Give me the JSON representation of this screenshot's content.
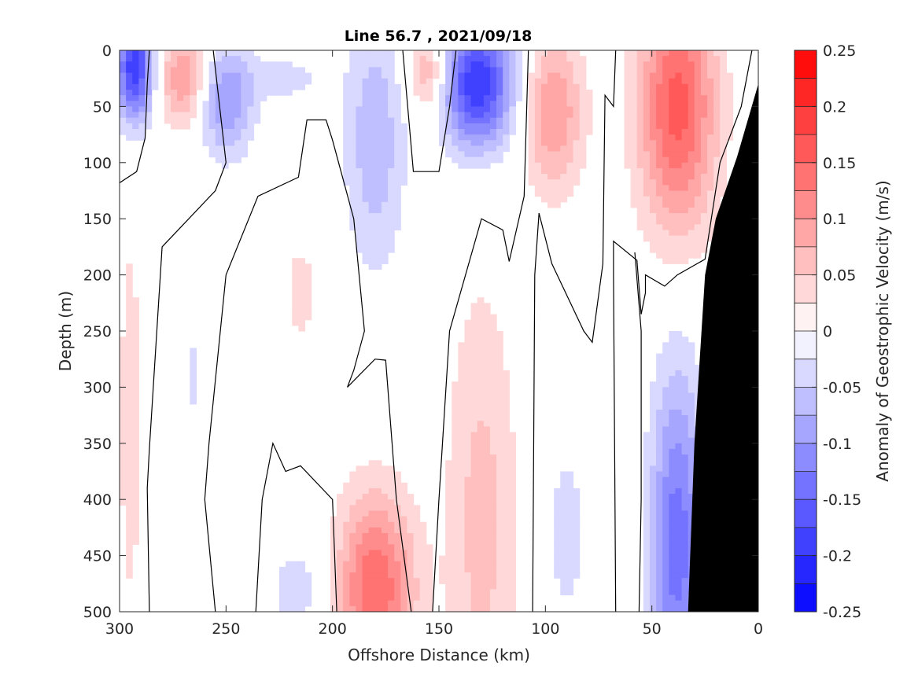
{
  "chart_data": {
    "type": "contour",
    "title": "Line 56.7 , 2021/09/18",
    "xlabel": "Offshore Distance (km)",
    "ylabel": "Depth (m)",
    "colorbar_label": "Anomaly of Geostrophic Velocity (m/s)",
    "xlim": [
      300,
      0
    ],
    "ylim": [
      0,
      500
    ],
    "x_reversed": true,
    "y_reversed": true,
    "x_ticks": [
      300,
      250,
      200,
      150,
      100,
      50,
      0
    ],
    "y_ticks": [
      0,
      50,
      100,
      150,
      200,
      250,
      300,
      350,
      400,
      450,
      500
    ],
    "colorbar_range": [
      -0.25,
      0.25
    ],
    "colorbar_levels": 20,
    "colorbar_ticks": [
      0.25,
      0.2,
      0.15,
      0.1,
      0.05,
      0,
      -0.05,
      -0.1,
      -0.15,
      -0.2,
      -0.25
    ],
    "colorbar_tick_labels": [
      "0.25",
      "0.2",
      "0.15",
      "0.1",
      "0.05",
      "0",
      "-0.05",
      "-0.1",
      "-0.15",
      "-0.2",
      "-0.25"
    ],
    "colors": {
      "positive": "#ff0000",
      "negative": "#0000ff",
      "zero": "#ffffff",
      "bathymetry": "#000000",
      "contour": "#000000"
    },
    "features": [
      {
        "x": 293,
        "depth": 15,
        "value": -0.2,
        "sx": 6,
        "sy": 35
      },
      {
        "x": 270,
        "depth": 25,
        "value": 0.1,
        "sx": 8,
        "sy": 30
      },
      {
        "x": 250,
        "depth": 45,
        "value": -0.1,
        "sx": 9,
        "sy": 35
      },
      {
        "x": 222,
        "depth": 25,
        "value": -0.035,
        "sx": 14,
        "sy": 16
      },
      {
        "x": 180,
        "depth": 80,
        "value": -0.07,
        "sx": 10,
        "sy": 80
      },
      {
        "x": 155,
        "depth": 20,
        "value": 0.09,
        "sx": 7,
        "sy": 26
      },
      {
        "x": 132,
        "depth": 30,
        "value": -0.2,
        "sx": 12,
        "sy": 40
      },
      {
        "x": 96,
        "depth": 55,
        "value": 0.1,
        "sx": 10,
        "sy": 50
      },
      {
        "x": 38,
        "depth": 50,
        "value": 0.16,
        "sx": 13,
        "sy": 80
      },
      {
        "x": 295,
        "depth": 330,
        "value": 0.035,
        "sx": 5,
        "sy": 170
      },
      {
        "x": 265,
        "depth": 290,
        "value": -0.035,
        "sx": 3,
        "sy": 30
      },
      {
        "x": 215,
        "depth": 215,
        "value": 0.035,
        "sx": 6,
        "sy": 40
      },
      {
        "x": 130,
        "depth": 420,
        "value": 0.06,
        "sx": 12,
        "sy": 150
      },
      {
        "x": 180,
        "depth": 480,
        "value": 0.15,
        "sx": 13,
        "sy": 60
      },
      {
        "x": 90,
        "depth": 430,
        "value": -0.035,
        "sx": 8,
        "sy": 70
      },
      {
        "x": 38,
        "depth": 440,
        "value": -0.14,
        "sx": 9,
        "sy": 110
      },
      {
        "x": 215,
        "depth": 480,
        "value": -0.04,
        "sx": 12,
        "sy": 30
      }
    ],
    "bathymetry_profile": [
      {
        "x": 0,
        "depth": 30
      },
      {
        "x": 10,
        "depth": 95
      },
      {
        "x": 20,
        "depth": 150
      },
      {
        "x": 25,
        "depth": 200
      },
      {
        "x": 30,
        "depth": 350
      },
      {
        "x": 33,
        "depth": 500
      }
    ],
    "zero_contours": [
      [
        [
          300,
          118
        ],
        [
          292,
          108
        ],
        [
          288,
          78
        ],
        [
          287,
          30
        ],
        [
          286,
          0
        ]
      ],
      [
        [
          286,
          500
        ],
        [
          287,
          390
        ],
        [
          286,
          355
        ],
        [
          280,
          175
        ],
        [
          255,
          125
        ],
        [
          250,
          100
        ],
        [
          256,
          0
        ]
      ],
      [
        [
          255,
          500
        ],
        [
          260,
          400
        ],
        [
          258,
          350
        ],
        [
          250,
          200
        ],
        [
          235,
          130
        ],
        [
          216,
          113
        ],
        [
          212,
          62
        ],
        [
          203,
          62
        ],
        [
          200,
          80
        ],
        [
          190,
          150
        ],
        [
          185,
          250
        ],
        [
          190,
          285
        ],
        [
          193,
          300
        ],
        [
          180,
          275
        ],
        [
          175,
          276
        ],
        [
          170,
          400
        ],
        [
          163,
          500
        ]
      ],
      [
        [
          236,
          500
        ],
        [
          233,
          400
        ],
        [
          228,
          350
        ],
        [
          222,
          375
        ],
        [
          215,
          370
        ],
        [
          200,
          400
        ],
        [
          198,
          500
        ]
      ],
      [
        [
          167,
          0
        ],
        [
          162,
          108
        ],
        [
          150,
          108
        ],
        [
          145,
          50
        ],
        [
          142,
          0
        ]
      ],
      [
        [
          153,
          500
        ],
        [
          150,
          400
        ],
        [
          145,
          250
        ],
        [
          130,
          150
        ],
        [
          120,
          160
        ],
        [
          117,
          188
        ],
        [
          110,
          130
        ],
        [
          108,
          0
        ]
      ],
      [
        [
          106,
          500
        ],
        [
          105,
          200
        ],
        [
          103,
          145
        ],
        [
          97,
          190
        ],
        [
          82,
          250
        ],
        [
          78,
          260
        ],
        [
          73,
          190
        ],
        [
          72,
          40
        ],
        [
          68,
          50
        ],
        [
          67,
          0
        ]
      ],
      [
        [
          67,
          500
        ],
        [
          68,
          200
        ],
        [
          68,
          170
        ],
        [
          57,
          187
        ],
        [
          55,
          235
        ],
        [
          53,
          216
        ],
        [
          53,
          200
        ],
        [
          44,
          210
        ],
        [
          38,
          200
        ],
        [
          25,
          186
        ],
        [
          18,
          100
        ],
        [
          8,
          50
        ],
        [
          3,
          0
        ]
      ],
      [
        [
          56,
          500
        ],
        [
          55,
          400
        ],
        [
          55,
          250
        ],
        [
          58,
          180
        ]
      ]
    ]
  }
}
